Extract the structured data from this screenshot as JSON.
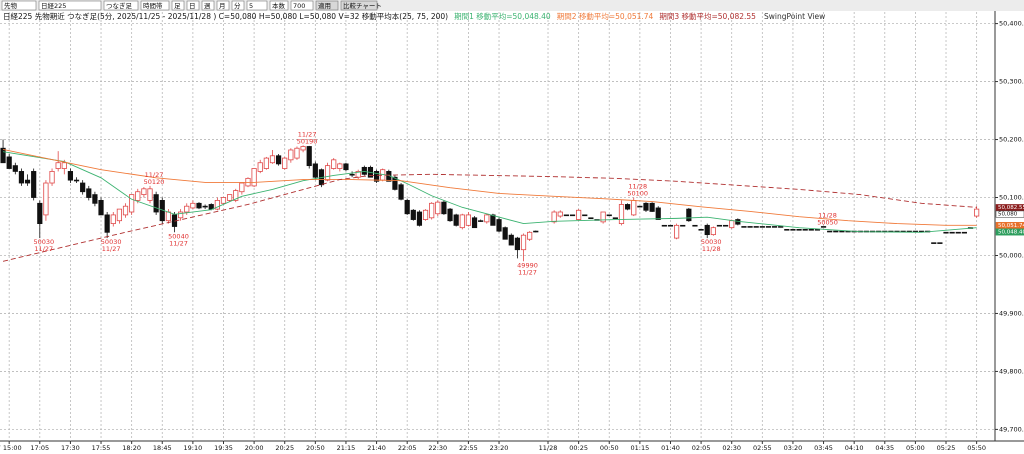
{
  "toolbar": [
    "先物",
    "日経225",
    "つなぎ足",
    "時間帯",
    "足",
    "日",
    "週",
    "月",
    "分",
    "5",
    "本数",
    "700",
    "適用",
    "比較チャート"
  ],
  "chart_data": {
    "type": "candlestick",
    "title": "日経225 先物期近 つなぎ足(5分, 2025/11/25 - 2025/11/28 ) C=50,080 H=50,080 L=50,080 V=32 移動平均本(25, 75, 200)",
    "subtitle": "SwingPoint View",
    "up_color": "#e04848",
    "down_color": "#111111",
    "xlim": [
      -0.5,
      162
    ],
    "ylim": [
      49680,
      50420
    ],
    "grid": true,
    "xticks": [
      {
        "value": 1,
        "label": "7 15:00"
      },
      {
        "value": 6,
        "label": "17:05"
      },
      {
        "value": 11,
        "label": "17:30"
      },
      {
        "value": 16,
        "label": "17:55"
      },
      {
        "value": 21,
        "label": "18:20"
      },
      {
        "value": 26,
        "label": "18:45"
      },
      {
        "value": 31,
        "label": "19:10"
      },
      {
        "value": 36,
        "label": "19:35"
      },
      {
        "value": 41,
        "label": "20:00"
      },
      {
        "value": 46,
        "label": "20:25"
      },
      {
        "value": 51,
        "label": "20:50"
      },
      {
        "value": 56,
        "label": "21:15"
      },
      {
        "value": 61,
        "label": "21:40"
      },
      {
        "value": 66,
        "label": "22:05"
      },
      {
        "value": 71,
        "label": "22:30"
      },
      {
        "value": 76,
        "label": "22:55"
      },
      {
        "value": 81,
        "label": "23:20"
      },
      {
        "value": 89,
        "label": "11/28"
      },
      {
        "value": 94,
        "label": "00:25"
      },
      {
        "value": 99,
        "label": "00:50"
      },
      {
        "value": 104,
        "label": "01:15"
      },
      {
        "value": 109,
        "label": "01:40"
      },
      {
        "value": 114,
        "label": "02:05"
      },
      {
        "value": 119,
        "label": "02:30"
      },
      {
        "value": 124,
        "label": "02:55"
      },
      {
        "value": 129,
        "label": "03:20"
      },
      {
        "value": 134,
        "label": "03:45"
      },
      {
        "value": 139,
        "label": "04:10"
      },
      {
        "value": 144,
        "label": "04:35"
      },
      {
        "value": 149,
        "label": "05:00"
      },
      {
        "value": 154,
        "label": "05:25"
      },
      {
        "value": 159,
        "label": "05:50"
      }
    ],
    "yticks": [
      {
        "value": 50400,
        "label": "50,400.0"
      },
      {
        "value": 50300,
        "label": "50,300.0"
      },
      {
        "value": 50200,
        "label": "50,200.0"
      },
      {
        "value": 50100,
        "label": "50,100.0"
      },
      {
        "value": 50000,
        "label": "50,000.0"
      },
      {
        "value": 49900,
        "label": "49,900.0"
      },
      {
        "value": 49800,
        "label": "49,800.0"
      },
      {
        "value": 49700,
        "label": "49,700.0"
      }
    ],
    "x": [
      0,
      1,
      2,
      3,
      4,
      5,
      6,
      7,
      8,
      9,
      10,
      11,
      12,
      13,
      14,
      15,
      16,
      17,
      18,
      19,
      20,
      21,
      22,
      23,
      24,
      25,
      26,
      27,
      28,
      29,
      30,
      31,
      32,
      33,
      34,
      35,
      36,
      37,
      38,
      39,
      40,
      41,
      42,
      43,
      44,
      45,
      46,
      47,
      48,
      49,
      50,
      51,
      52,
      53,
      54,
      55,
      56,
      57,
      58,
      59,
      60,
      61,
      62,
      63,
      64,
      65,
      66,
      67,
      68,
      69,
      70,
      71,
      72,
      73,
      74,
      75,
      76,
      77,
      78,
      79,
      80,
      81,
      82,
      83,
      84,
      85,
      86,
      87,
      88,
      89,
      90,
      91,
      92,
      93,
      94,
      95,
      96,
      97,
      98,
      99,
      100,
      101,
      102,
      103,
      104,
      105,
      106,
      107,
      108,
      109,
      110,
      111,
      112,
      113,
      114,
      115,
      116,
      117,
      118,
      119,
      120,
      121,
      122,
      123,
      124,
      125,
      126,
      127,
      128,
      129,
      130,
      131,
      132,
      133,
      134,
      135,
      136,
      137,
      138,
      139,
      140,
      141,
      142,
      143,
      144,
      145,
      146,
      147,
      148,
      149,
      150,
      151,
      152,
      153,
      154,
      155,
      156,
      157,
      158,
      159
    ],
    "open": [
      50185,
      50170,
      50155,
      50145,
      50130,
      50145,
      50090,
      50070,
      50125,
      50150,
      50150,
      50145,
      50130,
      50125,
      50115,
      50105,
      50095,
      50070,
      50055,
      50060,
      50070,
      50075,
      50095,
      50105,
      50095,
      50105,
      50095,
      50060,
      50070,
      50065,
      50075,
      50082,
      50090,
      50085,
      50088,
      50080,
      50090,
      50095,
      50095,
      50110,
      50120,
      50120,
      50145,
      50150,
      50160,
      50172,
      50150,
      50165,
      50168,
      50182,
      50188,
      50158,
      50148,
      50130,
      50150,
      50150,
      50158,
      50140,
      50135,
      50152,
      50152,
      50145,
      50130,
      50145,
      50135,
      50122,
      50095,
      50078,
      50075,
      50062,
      50065,
      50072,
      50092,
      50080,
      50070,
      50048,
      50052,
      50065,
      50060,
      50058,
      50070,
      50062,
      50048,
      50035,
      50030,
      50010,
      50028,
      50042,
      null,
      null,
      50058,
      50068,
      50070,
      50070,
      50062,
      50070,
      50065,
      50062,
      50058,
      50070,
      50065,
      50055,
      50088,
      50070,
      50085,
      50090,
      50090,
      50082,
      50052,
      50052,
      50030,
      50052,
      50080,
      50052,
      50045,
      50052,
      50036,
      50052,
      50052,
      50048,
      50062,
      50050,
      50050,
      50050,
      50050,
      50050,
      50050,
      50050,
      50045,
      50045,
      50045,
      50045,
      50045,
      50045,
      50050,
      50042,
      50042,
      50042,
      50042,
      50042,
      50042,
      50042,
      50042,
      50042,
      50042,
      50042,
      50042,
      50042,
      50042,
      50042,
      50042,
      50042,
      50022,
      50022,
      50040,
      50040,
      50040,
      50040,
      50048,
      50068
    ],
    "high": [
      50200,
      50175,
      50160,
      50150,
      50140,
      50150,
      50095,
      50130,
      50150,
      50180,
      50165,
      50150,
      50135,
      50130,
      50120,
      50110,
      50100,
      50075,
      50075,
      50080,
      50090,
      50105,
      50115,
      50118,
      50120,
      50110,
      50100,
      50080,
      50075,
      50080,
      50090,
      50095,
      50092,
      50088,
      50090,
      50100,
      50100,
      50105,
      50115,
      50125,
      50135,
      50150,
      50165,
      50170,
      50182,
      50175,
      50170,
      50185,
      50188,
      50190,
      50189,
      50162,
      50150,
      50160,
      50168,
      50160,
      50160,
      50145,
      50148,
      50155,
      50155,
      50148,
      50150,
      50148,
      50138,
      50125,
      50098,
      50080,
      50078,
      50080,
      50092,
      50095,
      50095,
      50082,
      50072,
      50072,
      50075,
      50068,
      50062,
      50072,
      50072,
      50065,
      50050,
      50038,
      50032,
      50038,
      50042,
      50043,
      null,
      null,
      50078,
      50078,
      50070,
      50070,
      50080,
      50070,
      50065,
      50062,
      50075,
      50070,
      50065,
      50095,
      50090,
      50100,
      50085,
      50092,
      50092,
      50085,
      50052,
      50052,
      50055,
      50052,
      50082,
      50052,
      50045,
      50055,
      50050,
      50052,
      50052,
      50062,
      50064,
      50050,
      50050,
      50050,
      50050,
      50050,
      50050,
      50050,
      50045,
      50045,
      50045,
      50045,
      50045,
      50045,
      50050,
      50042,
      50042,
      50042,
      50042,
      50042,
      50042,
      50042,
      50042,
      50042,
      50042,
      50042,
      50042,
      50042,
      50042,
      50042,
      50042,
      50042,
      50022,
      50022,
      50040,
      50040,
      50040,
      50040,
      50048,
      50085
    ],
    "low": [
      50160,
      50150,
      50140,
      50120,
      50120,
      50095,
      50030,
      50060,
      50120,
      50145,
      50140,
      50125,
      50125,
      50105,
      50095,
      50085,
      50070,
      50030,
      50050,
      50055,
      50065,
      50070,
      50090,
      50100,
      50090,
      50070,
      50055,
      50055,
      50040,
      50060,
      50070,
      50080,
      50080,
      50080,
      50078,
      50078,
      50088,
      50093,
      50092,
      50105,
      50118,
      50118,
      50142,
      50148,
      50158,
      50155,
      50148,
      50160,
      50165,
      50178,
      50150,
      50130,
      50118,
      50128,
      50148,
      50145,
      50145,
      50135,
      50132,
      50138,
      50135,
      50125,
      50128,
      50128,
      50112,
      50095,
      50070,
      50060,
      50050,
      50060,
      50062,
      50068,
      50070,
      50058,
      50050,
      50045,
      50050,
      50048,
      50058,
      50055,
      50052,
      50040,
      50028,
      50018,
      49995,
      49990,
      50025,
      50040,
      null,
      null,
      50055,
      50065,
      50070,
      50070,
      50060,
      50070,
      50065,
      50062,
      50055,
      50070,
      50065,
      50052,
      50078,
      50068,
      50085,
      50075,
      50075,
      50062,
      50052,
      50052,
      50028,
      50052,
      50058,
      50052,
      50045,
      50030,
      50034,
      50052,
      50052,
      50046,
      50052,
      50050,
      50050,
      50050,
      50050,
      50050,
      50050,
      50050,
      50045,
      50045,
      50045,
      50045,
      50045,
      50045,
      50050,
      50042,
      50042,
      50042,
      50042,
      50042,
      50042,
      50042,
      50042,
      50042,
      50042,
      50042,
      50042,
      50042,
      50042,
      50042,
      50042,
      50042,
      50022,
      50022,
      50040,
      50040,
      50040,
      50040,
      50048,
      50065
    ],
    "close": [
      50160,
      50150,
      50145,
      50125,
      50125,
      50100,
      50055,
      50125,
      50145,
      50160,
      50160,
      50130,
      50130,
      50110,
      50100,
      50090,
      50070,
      50040,
      50070,
      50080,
      50085,
      50105,
      50110,
      50115,
      50115,
      50075,
      50060,
      50075,
      50050,
      50075,
      50085,
      50090,
      50082,
      50085,
      50080,
      50095,
      50100,
      50105,
      50112,
      50125,
      50133,
      50150,
      50160,
      50168,
      50172,
      50158,
      50168,
      50182,
      50185,
      50188,
      50155,
      50135,
      50122,
      50155,
      50165,
      50158,
      50148,
      50140,
      50145,
      50140,
      50135,
      50128,
      50148,
      50128,
      50114,
      50097,
      50072,
      50062,
      50052,
      50078,
      50090,
      50092,
      50072,
      50060,
      50052,
      50070,
      50070,
      50048,
      50060,
      50070,
      50052,
      50042,
      50028,
      50018,
      50010,
      50035,
      50040,
      50042,
      null,
      null,
      50075,
      50075,
      50070,
      50070,
      50078,
      50070,
      50065,
      50062,
      50075,
      50070,
      50065,
      50088,
      50080,
      50095,
      50085,
      50078,
      50076,
      50062,
      50052,
      50052,
      50052,
      50052,
      50060,
      50052,
      50045,
      50036,
      50048,
      50052,
      50052,
      50060,
      50054,
      50050,
      50050,
      50050,
      50050,
      50050,
      50050,
      50050,
      50045,
      50045,
      50045,
      50045,
      50045,
      50045,
      50050,
      50042,
      50042,
      50042,
      50042,
      50042,
      50042,
      50042,
      50042,
      50042,
      50042,
      50042,
      50042,
      50042,
      50042,
      50042,
      50042,
      50042,
      50022,
      50022,
      50040,
      50040,
      50040,
      50040,
      50048,
      50080
    ],
    "series": [
      {
        "name": "期間1 移動平均=50,048.40",
        "color": "#3cb371",
        "dashed": false,
        "x": [
          0,
          10,
          16,
          21,
          28,
          34,
          39,
          44,
          49,
          54,
          59,
          63,
          66,
          70,
          75,
          80,
          85,
          90,
          100,
          110,
          115,
          120,
          130,
          140,
          150,
          159
        ],
        "values": [
          50179,
          50162,
          50134,
          50097,
          50071,
          50079,
          50102,
          50114,
          50129,
          50138,
          50145,
          50138,
          50124,
          50103,
          50083,
          50069,
          50055,
          50059,
          50062,
          50064,
          50066,
          50059,
          50048,
          50041,
          50040,
          50048
        ]
      },
      {
        "name": "期間2 移動平均=50,051.74",
        "color": "#f07a3a",
        "dashed": false,
        "x": [
          0,
          16,
          25,
          33,
          41,
          49,
          57,
          65,
          73,
          81,
          90,
          98,
          106,
          114,
          122,
          130,
          138,
          146,
          154,
          159
        ],
        "values": [
          50183,
          50148,
          50134,
          50126,
          50126,
          50131,
          50131,
          50129,
          50117,
          50107,
          50102,
          50098,
          50093,
          50084,
          50076,
          50067,
          50060,
          50055,
          50052,
          50052
        ]
      },
      {
        "name": "期間3 移動平均=50,082.55",
        "color": "#b03030",
        "dashed": true,
        "x": [
          0,
          20,
          40,
          55,
          60,
          70,
          80,
          90,
          100,
          110,
          120,
          130,
          140,
          150,
          159
        ],
        "values": [
          49990,
          50040,
          50088,
          50131,
          50138,
          50140,
          50138,
          50136,
          50133,
          50128,
          50121,
          50114,
          50105,
          50090,
          50083
        ]
      }
    ],
    "swing_points": [
      {
        "x": 6,
        "value": 50030,
        "label": "50030",
        "date": "11/27",
        "side": "low"
      },
      {
        "x": 17,
        "value": 50030,
        "label": "50030",
        "date": "11/27",
        "side": "low"
      },
      {
        "x": 24,
        "value": 50120,
        "label": "50120",
        "date": "11/27",
        "side": "high"
      },
      {
        "x": 28,
        "value": 50040,
        "label": "50040",
        "date": "11/27",
        "side": "low"
      },
      {
        "x": 49,
        "value": 50190,
        "label": "50190",
        "date": "11/27",
        "side": "high"
      },
      {
        "x": 85,
        "value": 49990,
        "label": "49990",
        "date": "11/27",
        "side": "low"
      },
      {
        "x": 103,
        "value": 50100,
        "label": "50100",
        "date": "11/28",
        "side": "high"
      },
      {
        "x": 115,
        "value": 50030,
        "label": "50030",
        "date": "11/28",
        "side": "low"
      },
      {
        "x": 134,
        "value": 50050,
        "label": "50050",
        "date": "11/28",
        "side": "high"
      }
    ],
    "price_tags": [
      {
        "value": 50082.55,
        "label": "50,082.55",
        "color": "#8b1c1c"
      },
      {
        "value": 50080,
        "label": "50,080",
        "color": "#ffffff"
      },
      {
        "value": 50051.74,
        "label": "50,051.74",
        "color": "#e8702a"
      },
      {
        "value": 50048.4,
        "label": "50,048.40",
        "color": "#2e9e5e"
      }
    ]
  }
}
